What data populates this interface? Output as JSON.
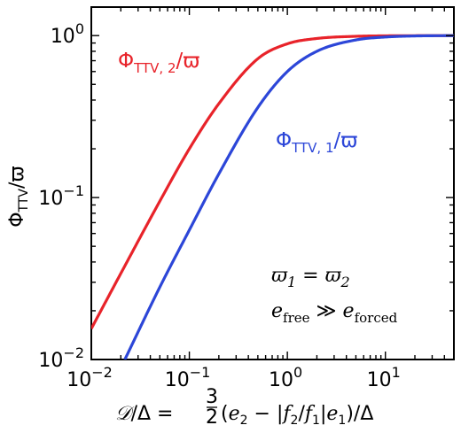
{
  "chart_data": {
    "type": "line",
    "xscale": "log",
    "yscale": "log",
    "xlim": [
      0.01,
      50
    ],
    "ylim": [
      0.01,
      1.5
    ],
    "xticks": [
      {
        "value": 0.01,
        "base": "10",
        "exp": "−2"
      },
      {
        "value": 0.1,
        "base": "10",
        "exp": "−1"
      },
      {
        "value": 1,
        "base": "10",
        "exp": "0"
      },
      {
        "value": 10,
        "base": "10",
        "exp": "1"
      }
    ],
    "yticks": [
      {
        "value": 0.01,
        "base": "10",
        "exp": "−2"
      },
      {
        "value": 0.1,
        "base": "10",
        "exp": "−1"
      },
      {
        "value": 1,
        "base": "10",
        "exp": "0"
      }
    ],
    "xlabel": "𝒟/Δ = 3/2 (e₂ − |f₂/f₁| e₁)/Δ",
    "ylabel": "Φ_TTV/ϖ",
    "series": [
      {
        "name": "Φ_TTV,2/ϖ",
        "color": "#e8232a",
        "x": [
          0.01,
          0.02,
          0.05,
          0.1,
          0.2,
          0.5,
          1,
          2,
          5,
          10,
          20,
          50
        ],
        "y": [
          0.0155,
          0.034,
          0.095,
          0.2,
          0.38,
          0.72,
          0.89,
          0.96,
          0.99,
          0.997,
          0.999,
          1.0
        ]
      },
      {
        "name": "Φ_TTV,1/ϖ",
        "color": "#2c46d8",
        "x": [
          0.022,
          0.05,
          0.1,
          0.2,
          0.5,
          1,
          2,
          5,
          10,
          20,
          50
        ],
        "y": [
          0.01,
          0.028,
          0.063,
          0.14,
          0.36,
          0.6,
          0.8,
          0.94,
          0.98,
          0.995,
          1.0
        ]
      }
    ],
    "annotations": [
      "ϖ₁ = ϖ₂",
      "e_free ≫ e_forced"
    ]
  }
}
